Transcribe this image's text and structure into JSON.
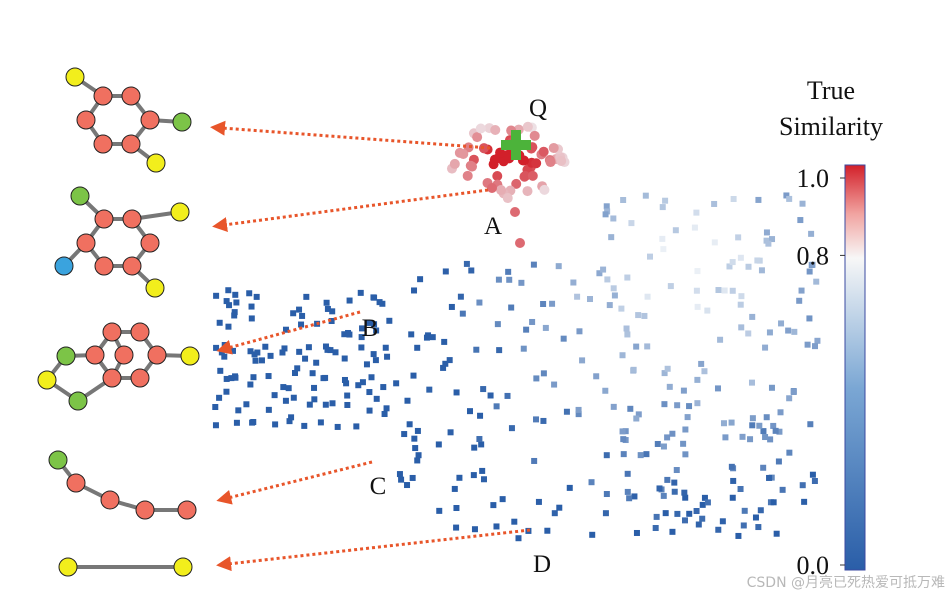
{
  "labels": [
    "Q",
    "A",
    "B",
    "C",
    "D"
  ],
  "colorbar": {
    "title": [
      "True",
      "Similarity"
    ],
    "range": [
      0,
      1.03
    ],
    "ticks": [
      {
        "value": 0,
        "label": "0.0"
      },
      0.8,
      {
        "value": 1,
        "label": "1.0"
      }
    ]
  },
  "watermark": "CSDN @月亮已死热爱可抵万难"
}
